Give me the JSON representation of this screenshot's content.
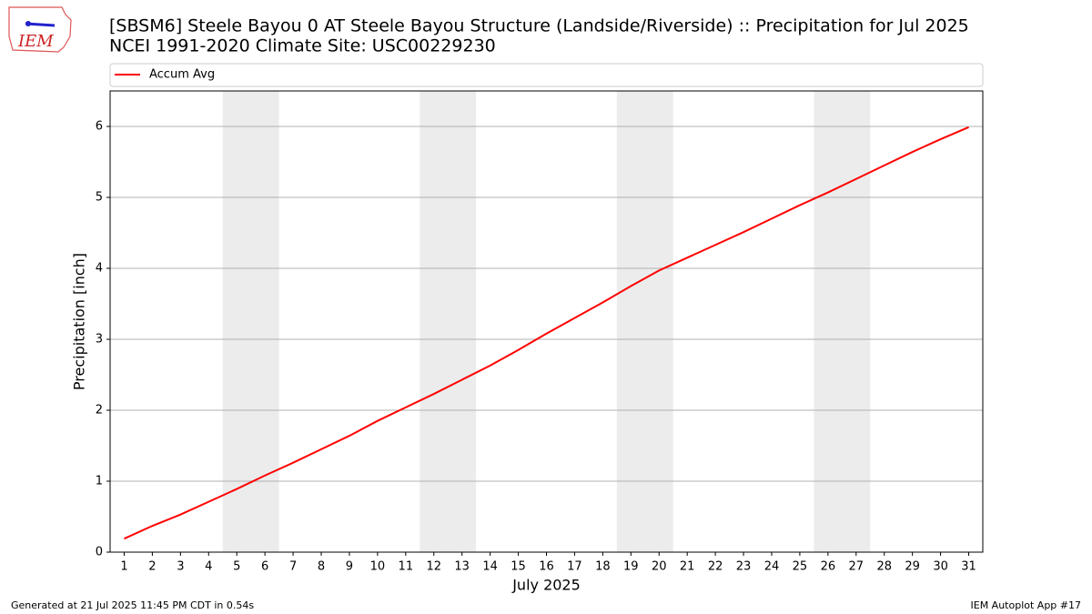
{
  "logo": "IEM",
  "footer_left": "Generated at 21 Jul 2025 11:45 PM CDT in 0.54s",
  "footer_right": "IEM Autoplot App #17",
  "chart_data": {
    "type": "line",
    "title": "[SBSM6] Steele Bayou 0 AT Steele Bayou Structure (Landside/Riverside) :: Precipitation for Jul 2025",
    "subtitle": "NCEI 1991-2020 Climate Site: USC00229230",
    "x_label": "July 2025",
    "y_label": "Precipitation [inch]",
    "x": [
      1,
      2,
      3,
      4,
      5,
      6,
      7,
      8,
      9,
      10,
      11,
      12,
      13,
      14,
      15,
      16,
      17,
      18,
      19,
      20,
      21,
      22,
      23,
      24,
      25,
      26,
      27,
      28,
      29,
      30,
      31
    ],
    "series": [
      {
        "name": "Accum Avg",
        "color": "#ff0000",
        "values": [
          0.19,
          0.37,
          0.53,
          0.71,
          0.89,
          1.08,
          1.26,
          1.45,
          1.64,
          1.85,
          2.04,
          2.23,
          2.43,
          2.63,
          2.85,
          3.08,
          3.3,
          3.52,
          3.75,
          3.97,
          4.15,
          4.33,
          4.51,
          4.7,
          4.89,
          5.07,
          5.26,
          5.45,
          5.64,
          5.82,
          5.99
        ]
      }
    ],
    "xlim": [
      0.5,
      31.5
    ],
    "xticks": [
      1,
      2,
      3,
      4,
      5,
      6,
      7,
      8,
      9,
      10,
      11,
      12,
      13,
      14,
      15,
      16,
      17,
      18,
      19,
      20,
      21,
      22,
      23,
      24,
      25,
      26,
      27,
      28,
      29,
      30,
      31
    ],
    "ylim": [
      0,
      6.5
    ],
    "yticks": [
      0,
      1,
      2,
      3,
      4,
      5,
      6
    ],
    "grid": true,
    "weekend_spans": [
      [
        4.5,
        6.5
      ],
      [
        11.5,
        13.5
      ],
      [
        18.5,
        20.5
      ],
      [
        25.5,
        27.5
      ]
    ],
    "weekend_color": "#ececec",
    "legend": "top"
  }
}
